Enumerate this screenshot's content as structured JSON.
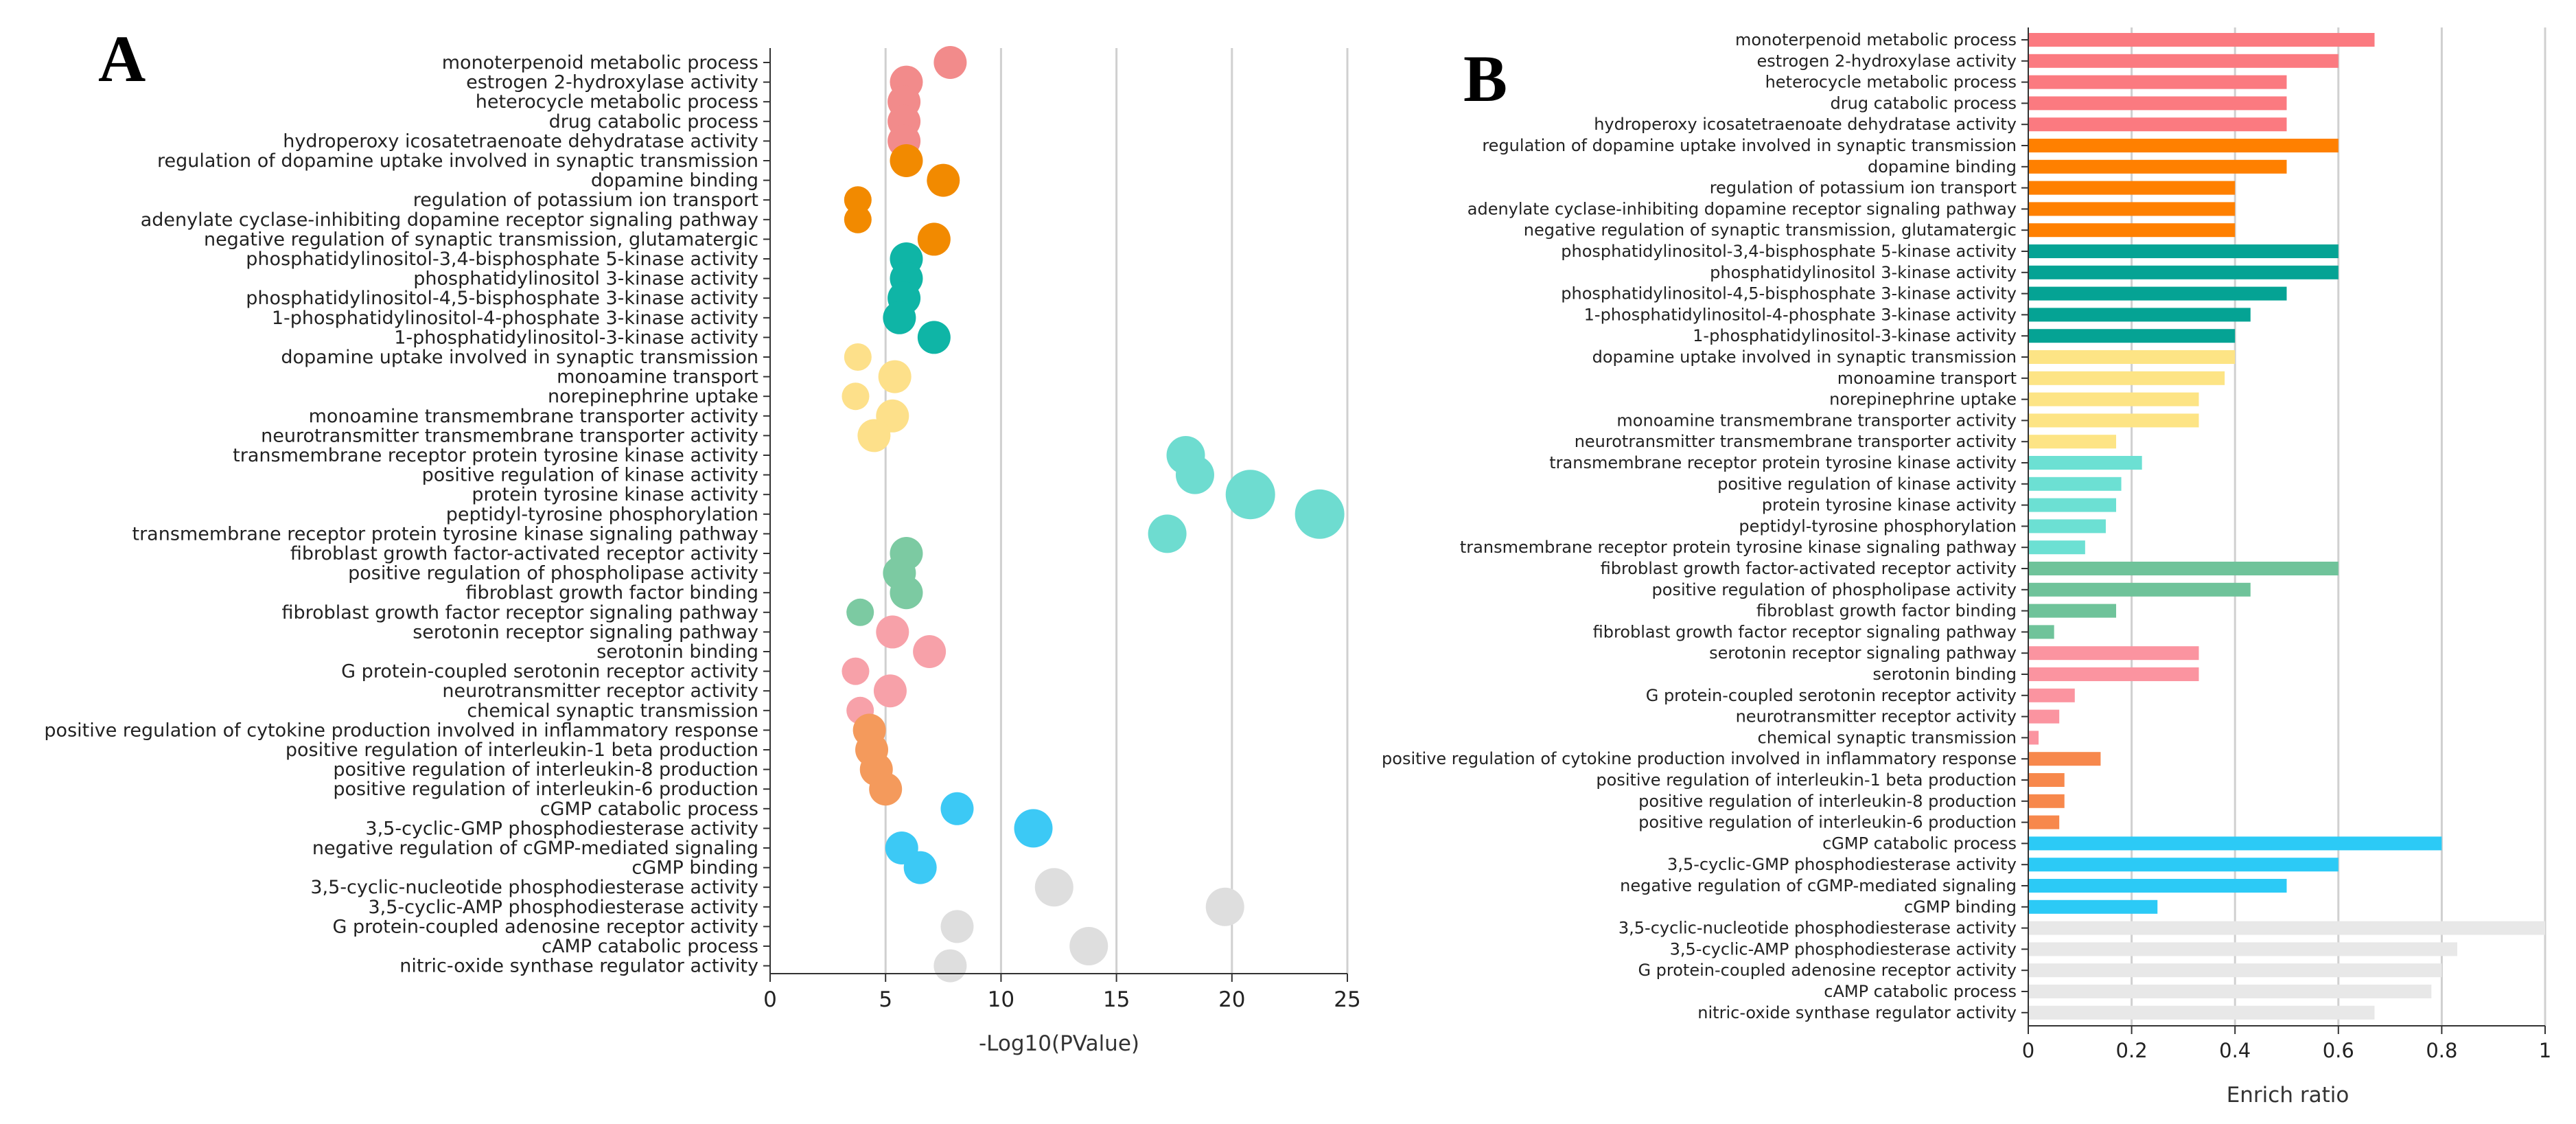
{
  "figure": {
    "panel_a_letter": "A",
    "panel_b_letter": "B"
  },
  "chart_data": [
    {
      "type": "scatter",
      "panel": "A",
      "xlabel": "-Log10(PValue)",
      "xlim": [
        0,
        25
      ],
      "xticks": [
        0,
        5,
        10,
        15,
        20,
        25
      ],
      "grid": "vertical",
      "categories": [
        "monoterpenoid metabolic process",
        "estrogen 2-hydroxylase activity",
        "heterocycle metabolic process",
        "drug catabolic process",
        "hydroperoxy icosatetraenoate dehydratase activity",
        "regulation of dopamine uptake involved in synaptic transmission",
        "dopamine binding",
        "regulation of potassium ion transport",
        "adenylate cyclase-inhibiting dopamine receptor signaling pathway",
        "negative regulation of synaptic transmission, glutamatergic",
        "phosphatidylinositol-3,4-bisphosphate 5-kinase activity",
        "phosphatidylinositol 3-kinase activity",
        "phosphatidylinositol-4,5-bisphosphate 3-kinase activity",
        "1-phosphatidylinositol-4-phosphate 3-kinase activity",
        "1-phosphatidylinositol-3-kinase activity",
        "dopamine uptake involved in synaptic transmission",
        "monoamine transport",
        "norepinephrine uptake",
        "monoamine transmembrane transporter activity",
        "neurotransmitter transmembrane transporter activity",
        "transmembrane receptor protein tyrosine kinase activity",
        "positive regulation of kinase activity",
        "protein tyrosine kinase activity",
        "peptidyl-tyrosine phosphorylation",
        "transmembrane receptor protein tyrosine kinase signaling pathway",
        "fibroblast growth factor-activated receptor activity",
        "positive regulation of phospholipase activity",
        "fibroblast growth factor binding",
        "fibroblast growth factor receptor signaling pathway",
        "serotonin receptor signaling pathway",
        "serotonin binding",
        "G protein-coupled serotonin receptor activity",
        "neurotransmitter receptor activity",
        "chemical synaptic transmission",
        "positive regulation of cytokine production involved in inflammatory response",
        "positive regulation of interleukin-1 beta production",
        "positive regulation of interleukin-8 production",
        "positive regulation of interleukin-6 production",
        "cGMP catabolic process",
        "3,5-cyclic-GMP phosphodiesterase activity",
        "negative regulation of cGMP-mediated signaling",
        "cGMP binding",
        "3,5-cyclic-nucleotide phosphodiesterase activity",
        "3,5-cyclic-AMP phosphodiesterase activity",
        "G protein-coupled adenosine receptor activity",
        "cAMP catabolic process",
        "nitric-oxide synthase regulator activity"
      ],
      "values": [
        7.8,
        5.9,
        5.8,
        5.8,
        5.8,
        5.9,
        7.5,
        3.8,
        3.8,
        7.1,
        5.9,
        5.9,
        5.8,
        5.6,
        7.1,
        3.8,
        5.4,
        3.7,
        5.3,
        4.5,
        18.0,
        18.4,
        20.8,
        23.8,
        17.2,
        5.9,
        5.6,
        5.9,
        3.9,
        5.3,
        6.9,
        3.7,
        5.2,
        3.9,
        4.3,
        4.4,
        4.6,
        5.0,
        8.1,
        11.4,
        5.7,
        6.5,
        12.3,
        19.7,
        8.1,
        13.8,
        7.8
      ],
      "sizes": [
        4,
        4,
        4,
        4,
        4,
        4,
        4,
        3,
        3,
        4,
        4,
        4,
        4,
        4,
        4,
        3,
        4,
        3,
        4,
        4,
        5,
        5,
        7,
        7,
        5,
        4,
        4,
        4,
        3,
        4,
        4,
        3,
        4,
        3,
        4,
        4,
        4,
        4,
        4,
        5,
        4,
        4,
        5,
        5,
        4,
        5,
        4
      ],
      "colors": [
        "#f28b8b",
        "#f28b8b",
        "#f28b8b",
        "#f28b8b",
        "#f28b8b",
        "#f28a00",
        "#f28a00",
        "#f28a00",
        "#f28a00",
        "#f28a00",
        "#0fb5a6",
        "#0fb5a6",
        "#0fb5a6",
        "#0fb5a6",
        "#0fb5a6",
        "#fde08a",
        "#fde08a",
        "#fde08a",
        "#fde08a",
        "#fde08a",
        "#6edcd0",
        "#6edcd0",
        "#6edcd0",
        "#6edcd0",
        "#6edcd0",
        "#7ccaa2",
        "#7ccaa2",
        "#7ccaa2",
        "#7ccaa2",
        "#f7a1a9",
        "#f7a1a9",
        "#f7a1a9",
        "#f7a1a9",
        "#f7a1a9",
        "#f49a5c",
        "#f49a5c",
        "#f49a5c",
        "#f49a5c",
        "#3cc9f5",
        "#3cc9f5",
        "#3cc9f5",
        "#3cc9f5",
        "#dedede",
        "#dedede",
        "#dedede",
        "#dedede",
        "#dedede"
      ]
    },
    {
      "type": "bar",
      "panel": "B",
      "orientation": "horizontal",
      "xlabel": "Enrich ratio",
      "xlim": [
        0,
        1
      ],
      "xticks": [
        0,
        0.2,
        0.4,
        0.6,
        0.8,
        1
      ],
      "xtick_labels": [
        "0",
        "0.2",
        "0.4",
        "0.6",
        "0.8",
        "1"
      ],
      "grid": "vertical",
      "categories": [
        "monoterpenoid metabolic process",
        "estrogen 2-hydroxylase activity",
        "heterocycle metabolic process",
        "drug catabolic process",
        "hydroperoxy icosatetraenoate dehydratase activity",
        "regulation of dopamine uptake involved in synaptic transmission",
        "dopamine binding",
        "regulation of potassium ion transport",
        "adenylate cyclase-inhibiting dopamine receptor signaling pathway",
        "negative regulation of synaptic transmission, glutamatergic",
        "phosphatidylinositol-3,4-bisphosphate 5-kinase activity",
        "phosphatidylinositol 3-kinase activity",
        "phosphatidylinositol-4,5-bisphosphate 3-kinase activity",
        "1-phosphatidylinositol-4-phosphate 3-kinase activity",
        "1-phosphatidylinositol-3-kinase activity",
        "dopamine uptake involved in synaptic transmission",
        "monoamine transport",
        "norepinephrine uptake",
        "monoamine transmembrane transporter activity",
        "neurotransmitter transmembrane transporter activity",
        "transmembrane receptor protein tyrosine kinase activity",
        "positive regulation of kinase activity",
        "protein tyrosine kinase activity",
        "peptidyl-tyrosine phosphorylation",
        "transmembrane receptor protein tyrosine kinase signaling pathway",
        "fibroblast growth factor-activated receptor activity",
        "positive regulation of phospholipase activity",
        "fibroblast growth factor binding",
        "fibroblast growth factor receptor signaling pathway",
        "serotonin receptor signaling pathway",
        "serotonin binding",
        "G protein-coupled serotonin receptor activity",
        "neurotransmitter receptor activity",
        "chemical synaptic transmission",
        "positive regulation of cytokine production involved in inflammatory response",
        "positive regulation of interleukin-1 beta production",
        "positive regulation of interleukin-8 production",
        "positive regulation of interleukin-6 production",
        "cGMP catabolic process",
        "3,5-cyclic-GMP phosphodiesterase activity",
        "negative regulation of cGMP-mediated signaling",
        "cGMP binding",
        "3,5-cyclic-nucleotide phosphodiesterase activity",
        "3,5-cyclic-AMP phosphodiesterase activity",
        "G protein-coupled adenosine receptor activity",
        "cAMP catabolic process",
        "nitric-oxide synthase regulator activity"
      ],
      "values": [
        0.67,
        0.6,
        0.5,
        0.5,
        0.5,
        0.6,
        0.5,
        0.4,
        0.4,
        0.4,
        0.6,
        0.6,
        0.5,
        0.43,
        0.4,
        0.4,
        0.38,
        0.33,
        0.33,
        0.17,
        0.22,
        0.18,
        0.17,
        0.15,
        0.11,
        0.6,
        0.43,
        0.17,
        0.05,
        0.33,
        0.33,
        0.09,
        0.06,
        0.02,
        0.14,
        0.07,
        0.07,
        0.06,
        0.8,
        0.6,
        0.5,
        0.25,
        1.0,
        0.83,
        0.8,
        0.78,
        0.67
      ],
      "colors": [
        "#fb7a80",
        "#fb7a80",
        "#fb7a80",
        "#fb7a80",
        "#fb7a80",
        "#ff8000",
        "#ff8000",
        "#ff8000",
        "#ff8000",
        "#ff8000",
        "#05a394",
        "#05a394",
        "#05a394",
        "#05a394",
        "#05a394",
        "#fde485",
        "#fde485",
        "#fde485",
        "#fde485",
        "#fde485",
        "#6ce0d3",
        "#6ce0d3",
        "#6ce0d3",
        "#6ce0d3",
        "#6ce0d3",
        "#6fc39a",
        "#6fc39a",
        "#6fc39a",
        "#6fc39a",
        "#fb94a0",
        "#fb94a0",
        "#fb94a0",
        "#fb94a0",
        "#fb94a0",
        "#f7884c",
        "#f7884c",
        "#f7884c",
        "#f7884c",
        "#2ccaf6",
        "#2ccaf6",
        "#2ccaf6",
        "#2ccaf6",
        "#e8e8e8",
        "#e8e8e8",
        "#e8e8e8",
        "#e8e8e8",
        "#e8e8e8"
      ]
    }
  ]
}
